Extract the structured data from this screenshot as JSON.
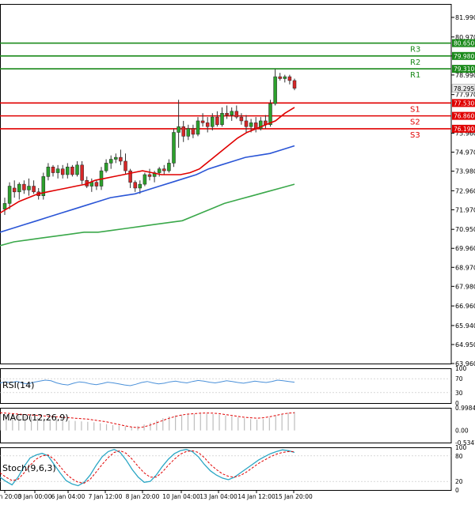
{
  "chart_data": [
    {
      "type": "candlestick",
      "title": "",
      "ylim": [
        63.96,
        82.69
      ],
      "y_ticks": [
        "81.990",
        "80.970",
        "79.980",
        "78.990",
        "77.970",
        "75.960",
        "74.970",
        "73.980",
        "72.960",
        "71.970",
        "70.950",
        "69.960",
        "68.970",
        "67.980",
        "66.960",
        "65.940",
        "64.950",
        "63.960"
      ],
      "current_price": "78.295",
      "candles": [
        {
          "o": 72.0,
          "h": 72.6,
          "l": 71.7,
          "c": 72.3
        },
        {
          "o": 72.3,
          "h": 73.4,
          "l": 72.0,
          "c": 73.2
        },
        {
          "o": 73.1,
          "h": 73.5,
          "l": 72.6,
          "c": 72.9
        },
        {
          "o": 72.9,
          "h": 73.4,
          "l": 72.5,
          "c": 73.3
        },
        {
          "o": 73.3,
          "h": 73.5,
          "l": 72.8,
          "c": 73.0
        },
        {
          "o": 73.0,
          "h": 73.6,
          "l": 72.7,
          "c": 73.2
        },
        {
          "o": 73.2,
          "h": 73.5,
          "l": 72.8,
          "c": 72.9
        },
        {
          "o": 72.9,
          "h": 73.1,
          "l": 72.5,
          "c": 72.7
        },
        {
          "o": 72.7,
          "h": 73.9,
          "l": 72.5,
          "c": 73.7
        },
        {
          "o": 73.7,
          "h": 74.4,
          "l": 73.5,
          "c": 74.2
        },
        {
          "o": 74.2,
          "h": 74.3,
          "l": 73.7,
          "c": 73.9
        },
        {
          "o": 73.9,
          "h": 74.3,
          "l": 73.6,
          "c": 74.1
        },
        {
          "o": 74.1,
          "h": 74.3,
          "l": 73.6,
          "c": 73.8
        },
        {
          "o": 73.8,
          "h": 74.4,
          "l": 73.6,
          "c": 74.2
        },
        {
          "o": 74.2,
          "h": 74.3,
          "l": 73.7,
          "c": 73.8
        },
        {
          "o": 73.8,
          "h": 74.5,
          "l": 73.7,
          "c": 74.3
        },
        {
          "o": 74.3,
          "h": 74.5,
          "l": 73.3,
          "c": 73.5
        },
        {
          "o": 73.5,
          "h": 73.7,
          "l": 73.1,
          "c": 73.2
        },
        {
          "o": 73.2,
          "h": 73.6,
          "l": 72.9,
          "c": 73.4
        },
        {
          "o": 73.4,
          "h": 73.5,
          "l": 73.0,
          "c": 73.2
        },
        {
          "o": 73.2,
          "h": 74.2,
          "l": 73.0,
          "c": 74.0
        },
        {
          "o": 74.0,
          "h": 74.6,
          "l": 73.9,
          "c": 74.4
        },
        {
          "o": 74.4,
          "h": 74.8,
          "l": 74.1,
          "c": 74.6
        },
        {
          "o": 74.6,
          "h": 74.9,
          "l": 74.4,
          "c": 74.7
        },
        {
          "o": 74.7,
          "h": 75.1,
          "l": 74.3,
          "c": 74.5
        },
        {
          "o": 74.5,
          "h": 74.9,
          "l": 73.8,
          "c": 74.0
        },
        {
          "o": 74.0,
          "h": 74.1,
          "l": 73.1,
          "c": 73.4
        },
        {
          "o": 73.4,
          "h": 73.5,
          "l": 72.9,
          "c": 73.1
        },
        {
          "o": 73.1,
          "h": 73.5,
          "l": 72.8,
          "c": 73.3
        },
        {
          "o": 73.3,
          "h": 73.9,
          "l": 73.2,
          "c": 73.8
        },
        {
          "o": 73.8,
          "h": 74.1,
          "l": 73.5,
          "c": 73.7
        },
        {
          "o": 73.7,
          "h": 74.0,
          "l": 73.4,
          "c": 73.9
        },
        {
          "o": 73.9,
          "h": 74.2,
          "l": 73.7,
          "c": 74.1
        },
        {
          "o": 74.1,
          "h": 74.3,
          "l": 73.8,
          "c": 74.0
        },
        {
          "o": 74.0,
          "h": 74.6,
          "l": 73.9,
          "c": 74.4
        },
        {
          "o": 74.4,
          "h": 76.2,
          "l": 74.2,
          "c": 76.0
        },
        {
          "o": 76.0,
          "h": 77.7,
          "l": 75.2,
          "c": 76.3
        },
        {
          "o": 76.3,
          "h": 76.6,
          "l": 75.5,
          "c": 75.8
        },
        {
          "o": 75.8,
          "h": 76.4,
          "l": 75.6,
          "c": 76.2
        },
        {
          "o": 76.2,
          "h": 76.4,
          "l": 75.7,
          "c": 75.9
        },
        {
          "o": 75.9,
          "h": 76.8,
          "l": 75.8,
          "c": 76.6
        },
        {
          "o": 76.6,
          "h": 77.0,
          "l": 76.3,
          "c": 76.5
        },
        {
          "o": 76.5,
          "h": 76.8,
          "l": 76.0,
          "c": 76.3
        },
        {
          "o": 76.3,
          "h": 77.0,
          "l": 76.1,
          "c": 76.8
        },
        {
          "o": 76.8,
          "h": 77.1,
          "l": 76.3,
          "c": 76.4
        },
        {
          "o": 76.4,
          "h": 77.3,
          "l": 76.3,
          "c": 77.0
        },
        {
          "o": 77.0,
          "h": 77.4,
          "l": 76.7,
          "c": 76.9
        },
        {
          "o": 76.9,
          "h": 77.3,
          "l": 76.6,
          "c": 77.1
        },
        {
          "o": 77.1,
          "h": 77.4,
          "l": 76.7,
          "c": 76.8
        },
        {
          "o": 76.8,
          "h": 77.0,
          "l": 76.4,
          "c": 76.6
        },
        {
          "o": 76.6,
          "h": 76.9,
          "l": 76.0,
          "c": 76.3
        },
        {
          "o": 76.3,
          "h": 76.7,
          "l": 76.0,
          "c": 76.5
        },
        {
          "o": 76.5,
          "h": 76.8,
          "l": 76.0,
          "c": 76.2
        },
        {
          "o": 76.2,
          "h": 76.8,
          "l": 76.1,
          "c": 76.6
        },
        {
          "o": 76.6,
          "h": 76.9,
          "l": 76.2,
          "c": 76.4
        },
        {
          "o": 76.4,
          "h": 77.7,
          "l": 76.3,
          "c": 77.5
        },
        {
          "o": 77.5,
          "h": 79.3,
          "l": 77.4,
          "c": 78.9
        },
        {
          "o": 78.9,
          "h": 79.1,
          "l": 78.7,
          "c": 78.8
        },
        {
          "o": 78.8,
          "h": 79.0,
          "l": 78.6,
          "c": 78.9
        },
        {
          "o": 78.9,
          "h": 79.0,
          "l": 78.5,
          "c": 78.7
        },
        {
          "o": 78.7,
          "h": 78.8,
          "l": 78.2,
          "c": 78.3
        }
      ],
      "moving_averages": [
        {
          "color": "#e00000",
          "start": [
            71.8,
            72.2,
            72.5,
            72.7,
            72.9
          ],
          "mid": [
            73.1,
            73.3,
            73.5,
            73.7,
            73.9,
            74.1,
            74.3
          ],
          "points": [
            71.8,
            72.1,
            72.4,
            72.6,
            72.8,
            72.9,
            73.0,
            73.1,
            73.2,
            73.3,
            73.5,
            73.6,
            73.7,
            73.8,
            73.9,
            74.0,
            73.9,
            73.8,
            73.8,
            73.8,
            73.9,
            74.1,
            74.5,
            74.9,
            75.3,
            75.7,
            76.0,
            76.2,
            76.4,
            76.6,
            77.0,
            77.3
          ]
        },
        {
          "color": "#2a55d6",
          "points": [
            70.8,
            71.0,
            71.2,
            71.4,
            71.6,
            71.8,
            72.0,
            72.2,
            72.4,
            72.6,
            72.7,
            72.8,
            73.0,
            73.2,
            73.4,
            73.6,
            73.8,
            74.1,
            74.3,
            74.5,
            74.7,
            74.8,
            74.9,
            75.1,
            75.3
          ]
        },
        {
          "color": "#3aa84a",
          "points": [
            70.1,
            70.3,
            70.4,
            70.5,
            70.6,
            70.7,
            70.8,
            70.8,
            70.9,
            71.0,
            71.1,
            71.2,
            71.3,
            71.4,
            71.7,
            72.0,
            72.3,
            72.5,
            72.7,
            72.9,
            73.1,
            73.3
          ]
        }
      ],
      "resistance": [
        {
          "label": "R1",
          "value": "79.310"
        },
        {
          "label": "R2",
          "value": "79.980"
        },
        {
          "label": "R3",
          "value": "80.650"
        }
      ],
      "support": [
        {
          "label": "S1",
          "value": "77.530"
        },
        {
          "label": "S2",
          "value": "76.860"
        },
        {
          "label": "S3",
          "value": "76.190"
        }
      ]
    },
    {
      "type": "line",
      "title": "RSI(14)",
      "ylim": [
        0,
        100
      ],
      "y_ticks": [
        "100",
        "70",
        "30",
        "0"
      ],
      "values": [
        58,
        61,
        59,
        62,
        57,
        55,
        60,
        63,
        66,
        64,
        58,
        54,
        52,
        57,
        61,
        59,
        55,
        53,
        56,
        60,
        58,
        55,
        52,
        50,
        54,
        59,
        62,
        58,
        55,
        57,
        61,
        63,
        60,
        58,
        62,
        65,
        63,
        60,
        58,
        61,
        64,
        62,
        59,
        57,
        60,
        63,
        61,
        59,
        62,
        66,
        64,
        62,
        60
      ]
    },
    {
      "type": "line",
      "title": "MACD(12,26,9)",
      "ylim": [
        -0.5347,
        0.9984
      ],
      "y_ticks": [
        "0.9984",
        "0.00",
        "-0.5347"
      ],
      "histogram": [
        0.72,
        0.7,
        0.68,
        0.66,
        0.64,
        0.6,
        0.56,
        0.52,
        0.5,
        0.48,
        0.46,
        0.44,
        0.42,
        0.4,
        0.38,
        0.36,
        0.32,
        0.28,
        0.24,
        0.2,
        0.18,
        0.16,
        0.2,
        0.26,
        0.34,
        0.44,
        0.54,
        0.62,
        0.66,
        0.68,
        0.7,
        0.72,
        0.74,
        0.74,
        0.72,
        0.7,
        0.66,
        0.62,
        0.58,
        0.54,
        0.5,
        0.48,
        0.5,
        0.56,
        0.64,
        0.72,
        0.78,
        0.82
      ],
      "signal": [
        0.78,
        0.76,
        0.74,
        0.72,
        0.7,
        0.68,
        0.66,
        0.64,
        0.62,
        0.6,
        0.58,
        0.56,
        0.54,
        0.52,
        0.5,
        0.46,
        0.42,
        0.38,
        0.32,
        0.26,
        0.2,
        0.15,
        0.12,
        0.16,
        0.24,
        0.34,
        0.44,
        0.54,
        0.62,
        0.68,
        0.72,
        0.74,
        0.76,
        0.77,
        0.76,
        0.74,
        0.7,
        0.66,
        0.62,
        0.58,
        0.56,
        0.54,
        0.56,
        0.6,
        0.66,
        0.72,
        0.76,
        0.78
      ]
    },
    {
      "type": "line",
      "title": "Stoch(9,6,3)",
      "ylim": [
        0,
        100
      ],
      "y_ticks": [
        "100",
        "80",
        "20",
        "0"
      ],
      "k": [
        30,
        20,
        12,
        30,
        55,
        75,
        82,
        86,
        80,
        60,
        40,
        22,
        14,
        10,
        18,
        35,
        58,
        78,
        90,
        95,
        88,
        70,
        48,
        30,
        18,
        20,
        35,
        55,
        72,
        85,
        92,
        95,
        90,
        78,
        60,
        45,
        35,
        28,
        24,
        30,
        40,
        50,
        60,
        70,
        78,
        85,
        90,
        94,
        92,
        88
      ],
      "d": [
        40,
        30,
        22,
        25,
        40,
        58,
        72,
        80,
        82,
        72,
        55,
        38,
        26,
        18,
        16,
        25,
        42,
        60,
        76,
        88,
        92,
        86,
        72,
        55,
        40,
        30,
        30,
        42,
        58,
        72,
        84,
        90,
        92,
        88,
        76,
        60,
        48,
        38,
        32,
        30,
        34,
        42,
        52,
        62,
        70,
        78,
        84,
        88,
        90,
        90
      ]
    }
  ],
  "x_axis": {
    "labels": [
      "2 Jan 20:00",
      "3 Jan 00:00",
      "6 Jan 04:00",
      "7 Jan 12:00",
      "8 Jan 20:00",
      "10 Jan 04:00",
      "13 Jan 04:00",
      "14 Jan 12:00",
      "15 Jan 20:00"
    ]
  },
  "colors": {
    "up_candle": "#2ca02c",
    "down_candle": "#d62728",
    "resistance": "#1b8a1b",
    "support": "#e00000",
    "rsi": "#4a90d9",
    "macd_hist": "#bdbdbd",
    "macd_signal": "#e00000",
    "stoch_k": "#2aa6c4",
    "stoch_d": "#e00000"
  }
}
